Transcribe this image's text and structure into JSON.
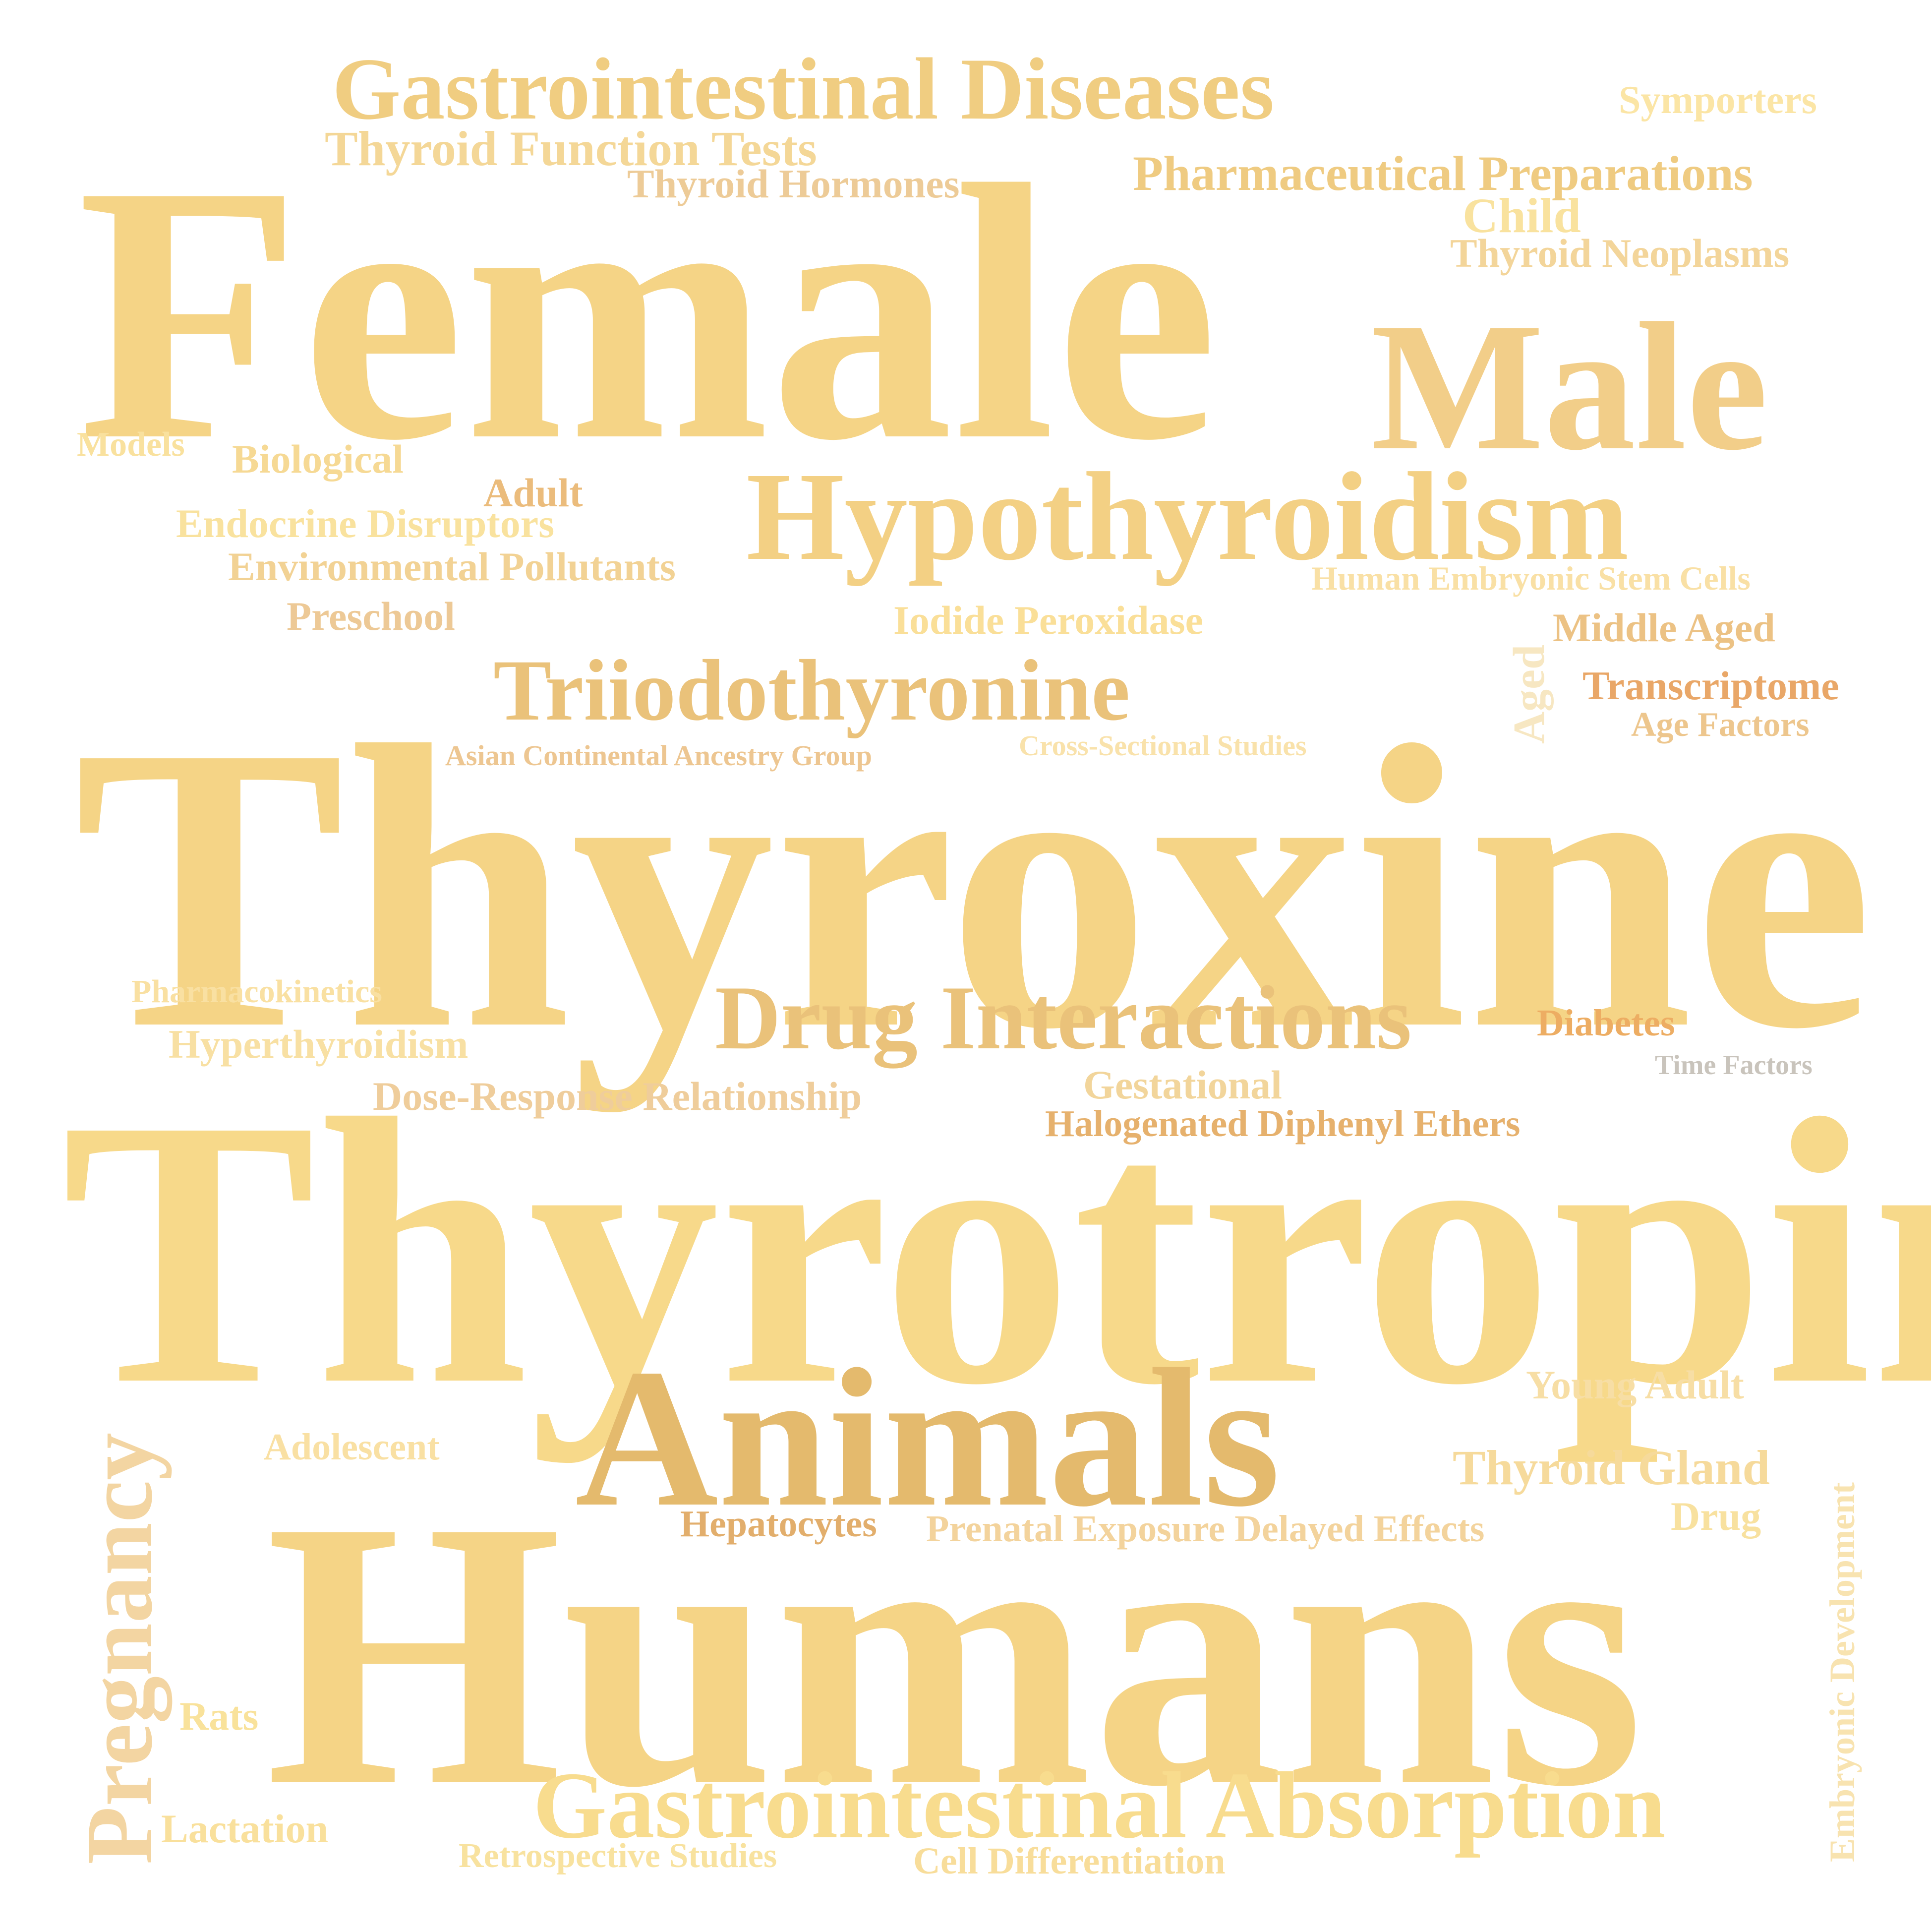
{
  "words": [
    {
      "text": "Female",
      "color": "#F5D486"
    },
    {
      "text": "Thyroxine",
      "color": "#F5D486"
    },
    {
      "text": "Thyrotropin",
      "color": "#F7D98A"
    },
    {
      "text": "Humans",
      "color": "#F5D486"
    },
    {
      "text": "Animals",
      "color": "#E4BA6D"
    },
    {
      "text": "Male",
      "color": "#F2CE89"
    },
    {
      "text": "Hypothyroidism",
      "color": "#F3D084"
    },
    {
      "text": "Gastrointestinal Diseases",
      "color": "#F0CD81"
    },
    {
      "text": "Gastrointestinal Absorption",
      "color": "#F8DC8E"
    },
    {
      "text": "Triiodothyronine",
      "color": "#EAC27A"
    },
    {
      "text": "Drug Interactions",
      "color": "#EAC27A"
    },
    {
      "text": "Pregnancy",
      "color": "#F3D5A2"
    },
    {
      "text": "Pharmaceutical Preparations",
      "color": "#EFCB81"
    },
    {
      "text": "Thyroid Function Tests",
      "color": "#F4D797"
    },
    {
      "text": "Thyroid Hormones",
      "color": "#EDCB97"
    },
    {
      "text": "Symporters",
      "color": "#FBE5A5"
    },
    {
      "text": "Child",
      "color": "#F9E29E"
    },
    {
      "text": "Thyroid Neoplasms",
      "color": "#F3D59A"
    },
    {
      "text": "Models",
      "color": "#F9E19E"
    },
    {
      "text": "Biological",
      "color": "#F6D994"
    },
    {
      "text": "Adult",
      "color": "#EBBC7C"
    },
    {
      "text": "Endocrine Disruptors",
      "color": "#F9E29E"
    },
    {
      "text": "Environmental Pollutants",
      "color": "#F2D294"
    },
    {
      "text": "Preschool",
      "color": "#EDC996"
    },
    {
      "text": "Human Embryonic Stem Cells",
      "color": "#F9E0A5"
    },
    {
      "text": "Iodide Peroxidase",
      "color": "#FADF98"
    },
    {
      "text": "Aged",
      "color": "#F7E7C2"
    },
    {
      "text": "Middle Aged",
      "color": "#ECC284"
    },
    {
      "text": "Transcriptome",
      "color": "#E9A768"
    },
    {
      "text": "Age Factors",
      "color": "#EDC68D"
    },
    {
      "text": "Asian Continental Ancestry Group",
      "color": "#EDC691"
    },
    {
      "text": "Cross-Sectional Studies",
      "color": "#F9E2AB"
    },
    {
      "text": "Pharmacokinetics",
      "color": "#F9E0A2"
    },
    {
      "text": "Hyperthyroidism",
      "color": "#F8E0A3"
    },
    {
      "text": "Diabetes",
      "color": "#EDAD63"
    },
    {
      "text": "Time Factors",
      "color": "#C9C4BC"
    },
    {
      "text": "Dose-Response Relationship",
      "color": "#EFCD9B"
    },
    {
      "text": "Gestational",
      "color": "#F2D59B"
    },
    {
      "text": "Halogenated Diphenyl Ethers",
      "color": "#E6B16D"
    },
    {
      "text": "Young Adult",
      "color": "#F7DEA5"
    },
    {
      "text": "Adolescent",
      "color": "#F9E0A3"
    },
    {
      "text": "Thyroid Gland",
      "color": "#F6DA9B"
    },
    {
      "text": "Drug",
      "color": "#F8E19F"
    },
    {
      "text": "Hepatocytes",
      "color": "#E2AE6C"
    },
    {
      "text": "Prenatal Exposure Delayed Effects",
      "color": "#F3D39C"
    },
    {
      "text": "Embryonic Development",
      "color": "#F8E3B0"
    },
    {
      "text": "Rats",
      "color": "#F9E29B"
    },
    {
      "text": "Lactation",
      "color": "#F9E09C"
    },
    {
      "text": "Retrospective Studies",
      "color": "#F8E29F"
    },
    {
      "text": "Cell Differentiation",
      "color": "#F8DD9A"
    }
  ]
}
